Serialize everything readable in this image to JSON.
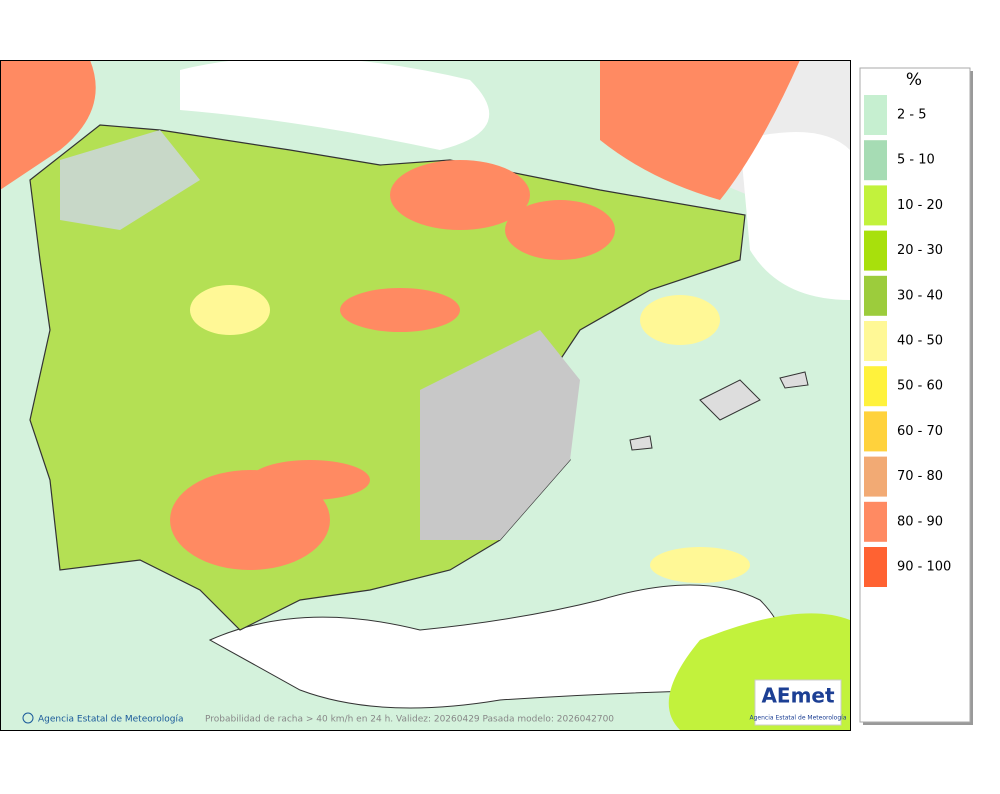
{
  "legend": {
    "title": "%",
    "items": [
      {
        "label": "2 - 5",
        "color": "#c6efd0"
      },
      {
        "label": "5 - 10",
        "color": "#a6dcb4"
      },
      {
        "label": "10 - 20",
        "color": "#c2f23c"
      },
      {
        "label": "20 - 30",
        "color": "#a8e00c"
      },
      {
        "label": "30 - 40",
        "color": "#9ccc3c"
      },
      {
        "label": "40 - 50",
        "color": "#fff896"
      },
      {
        "label": "50 - 60",
        "color": "#fff23c"
      },
      {
        "label": "60 - 70",
        "color": "#ffd23c"
      },
      {
        "label": "70 - 80",
        "color": "#f2aa74"
      },
      {
        "label": "80 - 90",
        "color": "#ff8a62"
      },
      {
        "label": "90 - 100",
        "color": "#ff6232"
      }
    ]
  },
  "footer": {
    "credit": "Agencia Estatal de Meteorología",
    "caption": "Probabilidad de racha > 40 km/h en 24 h. Validez: 20260429 Pasada modelo: 2026042700"
  },
  "logo": {
    "name": "AEmet",
    "subtitle": "Agencia Estatal de Meteorología"
  }
}
